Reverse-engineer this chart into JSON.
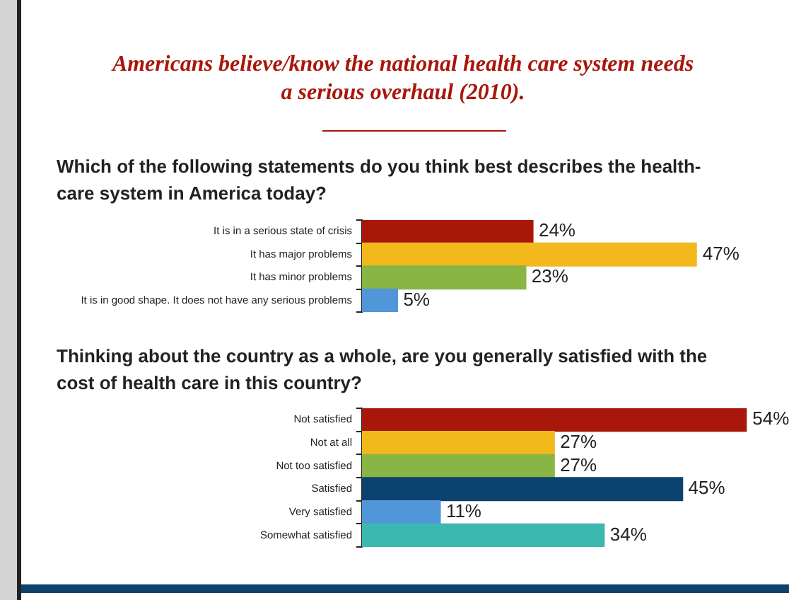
{
  "chart_data": [
    {
      "type": "bar",
      "orientation": "horizontal",
      "title": "Americans believe/know the national health care system needs a serious overhaul (2010).",
      "subtitle": "Which of the following statements do you think best describes the health-care system in America today?",
      "categories": [
        "It is in a serious state of crisis",
        "It has major problems",
        "It has minor problems",
        "It is in good shape. It does not have any serious problems"
      ],
      "values": [
        24,
        47,
        23,
        5
      ],
      "colors": [
        "#a8170a",
        "#f2b81c",
        "#88b544",
        "#5096d8"
      ],
      "value_labels": [
        "24%",
        "47%",
        "23%",
        "5%"
      ],
      "tick_labels": "y",
      "grid": false,
      "legend": false
    },
    {
      "type": "bar",
      "orientation": "horizontal",
      "title": "Thinking about the country as a whole, are you generally satisfied with  the cost of health care in this country?",
      "categories": [
        "Not satisfied",
        "Not at all",
        "Not too satisfied",
        "Satisfied",
        "Very satisfied",
        "Somewhat satisfied"
      ],
      "values": [
        54,
        27,
        27,
        45,
        11,
        34
      ],
      "colors": [
        "#a8170a",
        "#f2b81c",
        "#88b544",
        "#0b426e",
        "#5096d8",
        "#3db8b0"
      ],
      "value_labels": [
        "54%",
        "27%",
        "27%",
        "45%",
        "11%",
        "34%"
      ],
      "tick_labels": "y",
      "grid": false,
      "legend": false
    }
  ]
}
